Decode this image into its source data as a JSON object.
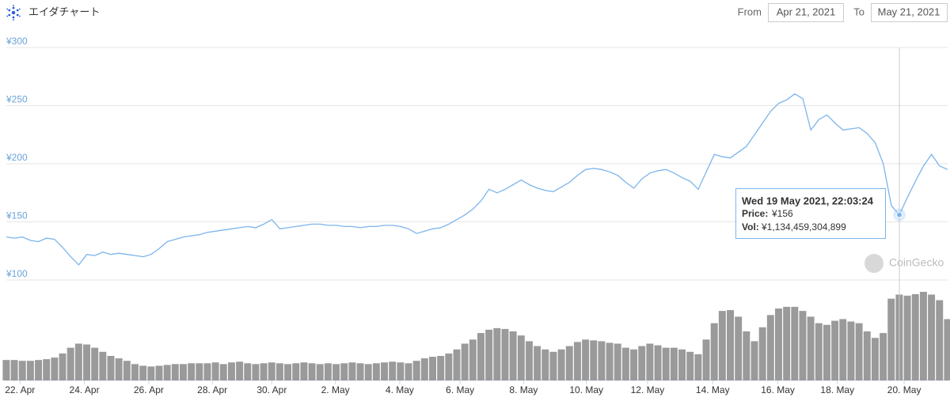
{
  "chart_data": {
    "type": "line",
    "title": "エイダチャート",
    "range": {
      "from_label": "From",
      "from": "Apr 21, 2021",
      "to_label": "To",
      "to": "May 21, 2021"
    },
    "watermark": "CoinGecko",
    "xlim": [
      0,
      117
    ],
    "xticks": [
      {
        "value": 1.7,
        "label": "22. Apr"
      },
      {
        "value": 9.7,
        "label": "24. Apr"
      },
      {
        "value": 17.7,
        "label": "26. Apr"
      },
      {
        "value": 25.6,
        "label": "28. Apr"
      },
      {
        "value": 33.0,
        "label": "30. Apr"
      },
      {
        "value": 40.9,
        "label": "2. May"
      },
      {
        "value": 48.9,
        "label": "4. May"
      },
      {
        "value": 56.4,
        "label": "6. May"
      },
      {
        "value": 64.3,
        "label": "8. May"
      },
      {
        "value": 72.1,
        "label": "10. May"
      },
      {
        "value": 79.7,
        "label": "12. May"
      },
      {
        "value": 87.8,
        "label": "14. May"
      },
      {
        "value": 95.9,
        "label": "16. May"
      },
      {
        "value": 103.3,
        "label": "18. May"
      },
      {
        "value": 111.6,
        "label": "20. May"
      }
    ],
    "ylim": [
      100,
      300
    ],
    "yticks": [
      {
        "value": 300,
        "label": "¥300"
      },
      {
        "value": 250,
        "label": "¥250"
      },
      {
        "value": 200,
        "label": "¥200"
      },
      {
        "value": 150,
        "label": "¥150"
      },
      {
        "value": 100,
        "label": "¥100"
      }
    ],
    "grid": true,
    "price": {
      "color": "#7cb5ec",
      "values": [
        137,
        136,
        137,
        134,
        133,
        136,
        135,
        128,
        120,
        113,
        122,
        121,
        124,
        122,
        123,
        122,
        121,
        120,
        122,
        127,
        133,
        135,
        137,
        138,
        139,
        141,
        142,
        143,
        144,
        145,
        146,
        145,
        148,
        152,
        144,
        145,
        146,
        147,
        148,
        148,
        147,
        147,
        146,
        146,
        145,
        146,
        146,
        147,
        147,
        146,
        144,
        140,
        142,
        144,
        145,
        148,
        152,
        156,
        161,
        168,
        178,
        175,
        178,
        182,
        186,
        182,
        179,
        177,
        176,
        180,
        184,
        190,
        195,
        196,
        195,
        193,
        190,
        184,
        179,
        187,
        192,
        194,
        195,
        192,
        188,
        185,
        178,
        193,
        208,
        206,
        205,
        210,
        215,
        225,
        235,
        245,
        252,
        255,
        260,
        256,
        229,
        238,
        242,
        235,
        229,
        230,
        231,
        226,
        218,
        200,
        164,
        156,
        171,
        185,
        198,
        208,
        198,
        195
      ]
    },
    "volume": {
      "color": "#9a9a9a",
      "values": [
        270000000000.0,
        270000000000.0,
        259000000000.0,
        259000000000.0,
        270000000000.0,
        281000000000.0,
        302000000000.0,
        356000000000.0,
        432000000000.0,
        486000000000.0,
        475000000000.0,
        432000000000.0,
        378000000000.0,
        324000000000.0,
        292000000000.0,
        259000000000.0,
        216000000000.0,
        194000000000.0,
        184000000000.0,
        194000000000.0,
        205000000000.0,
        216000000000.0,
        216000000000.0,
        227000000000.0,
        227000000000.0,
        227000000000.0,
        238000000000.0,
        216000000000.0,
        238000000000.0,
        248000000000.0,
        227000000000.0,
        216000000000.0,
        227000000000.0,
        238000000000.0,
        227000000000.0,
        216000000000.0,
        227000000000.0,
        238000000000.0,
        227000000000.0,
        216000000000.0,
        227000000000.0,
        216000000000.0,
        227000000000.0,
        238000000000.0,
        227000000000.0,
        216000000000.0,
        227000000000.0,
        238000000000.0,
        248000000000.0,
        238000000000.0,
        227000000000.0,
        259000000000.0,
        292000000000.0,
        313000000000.0,
        324000000000.0,
        356000000000.0,
        410000000000.0,
        486000000000.0,
        540000000000.0,
        626000000000.0,
        670000000000.0,
        691000000000.0,
        680000000000.0,
        648000000000.0,
        594000000000.0,
        518000000000.0,
        454000000000.0,
        410000000000.0,
        378000000000.0,
        410000000000.0,
        454000000000.0,
        508000000000.0,
        540000000000.0,
        529000000000.0,
        518000000000.0,
        497000000000.0,
        486000000000.0,
        432000000000.0,
        410000000000.0,
        454000000000.0,
        486000000000.0,
        464000000000.0,
        432000000000.0,
        432000000000.0,
        410000000000.0,
        378000000000.0,
        346000000000.0,
        540000000000.0,
        756000000000.0,
        918000000000.0,
        929000000000.0,
        842000000000.0,
        648000000000.0,
        518000000000.0,
        702000000000.0,
        864000000000.0,
        950000000000.0,
        972000000000.0,
        972000000000.0,
        918000000000.0,
        842000000000.0,
        756000000000.0,
        734000000000.0,
        788000000000.0,
        810000000000.0,
        778000000000.0,
        756000000000.0,
        648000000000.0,
        562000000000.0,
        626000000000.0,
        1080000000000.0,
        1134000000000.0,
        1120000000000.0,
        1140000000000.0,
        1170000000000.0,
        1134000000000.0,
        1060000000000.0,
        810000000000.0
      ]
    },
    "tooltip": {
      "index": 111,
      "date": "Wed 19 May 2021, 22:03:24",
      "price_label": "Price:",
      "price": "¥156",
      "vol_label": "Vol:",
      "vol": "¥1,134,459,304,899"
    }
  }
}
